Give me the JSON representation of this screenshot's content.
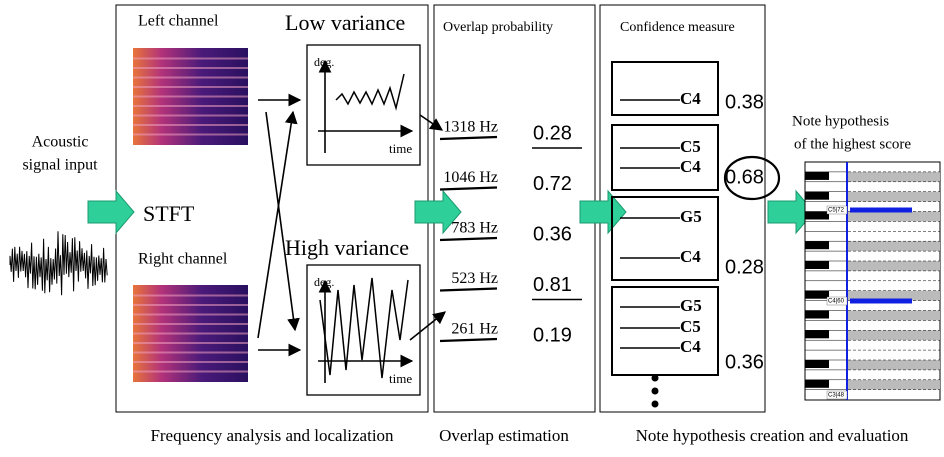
{
  "input": {
    "label_lines": [
      "Acoustic",
      "signal input"
    ]
  },
  "stft": "STFT",
  "sections": [
    {
      "caption": "Frequency analysis and localization"
    },
    {
      "caption": "Overlap estimation"
    },
    {
      "caption": "Note hypothesis creation and evaluation"
    }
  ],
  "analysis": {
    "left": "Left channel",
    "right": "Right channel",
    "low": {
      "title": "Low variance",
      "y_label": "deg.",
      "x_label": "time"
    },
    "high": {
      "title": "High variance",
      "y_label": "deg.",
      "x_label": "time"
    }
  },
  "overlap": {
    "title": "Overlap probability",
    "items": [
      {
        "freq": "1318 Hz",
        "prob": "0.28",
        "underline": true
      },
      {
        "freq": "1046 Hz",
        "prob": "0.72",
        "underline": false
      },
      {
        "freq": "783 Hz",
        "prob": "0.36",
        "underline": false
      },
      {
        "freq": "523 Hz",
        "prob": "0.81",
        "underline": true
      },
      {
        "freq": "261 Hz",
        "prob": "0.19",
        "underline": false
      }
    ]
  },
  "confidence": {
    "title": "Confidence measure",
    "boxes": [
      {
        "notes": [
          "C4"
        ],
        "score": "0.38",
        "highlight": false
      },
      {
        "notes": [
          "C5",
          "C4"
        ],
        "score": "0.68",
        "highlight": true
      },
      {
        "notes": [
          "G5",
          "C4"
        ],
        "score": "0.28",
        "highlight": false
      },
      {
        "notes": [
          "G5",
          "C5",
          "C4"
        ],
        "score": "0.36",
        "highlight": false
      }
    ]
  },
  "result": {
    "title_lines": [
      "Note hypothesis",
      "of the highest score"
    ],
    "key_labels": [
      "C5|72",
      "C4|60",
      "C3|48"
    ]
  }
}
